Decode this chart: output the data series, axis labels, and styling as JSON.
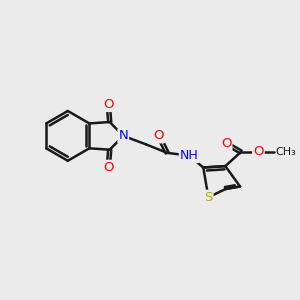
{
  "background_color": "#ebebeb",
  "bond_color": "#1a1a1a",
  "bond_width": 1.8,
  "atom_colors": {
    "O": "#ff0000",
    "N": "#0000ff",
    "S": "#bbaa00",
    "C": "#1a1a1a",
    "H": "#708090"
  },
  "font_size": 9.5,
  "figsize": [
    3.0,
    3.0
  ],
  "dpi": 100,
  "xlim": [
    0,
    10
  ],
  "ylim": [
    0,
    10
  ]
}
